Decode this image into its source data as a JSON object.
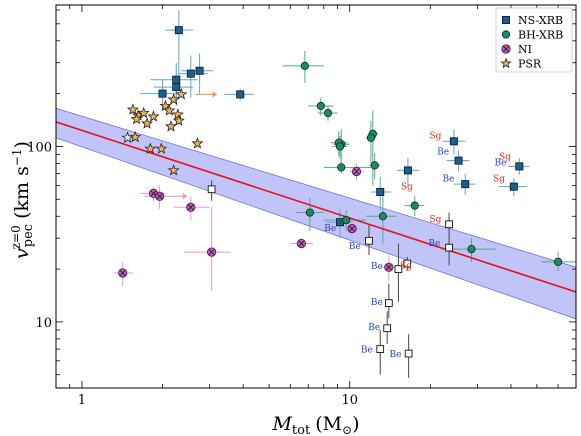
{
  "chart_data": {
    "type": "scatter",
    "title": "",
    "xlabel_main": "M",
    "xlabel_sub": "tot",
    "xlabel_unit": "(M",
    "xlabel_unit_close": ")",
    "ylabel_main": "v",
    "ylabel_sub": "pec",
    "ylabel_sup": "z=0",
    "ylabel_unit": "(km s",
    "ylabel_unit_sup": "−1",
    "ylabel_unit_close": ")",
    "x_scale": "log",
    "y_scale": "log",
    "xlim": [
      0.8,
      70
    ],
    "ylim": [
      4.2,
      640
    ],
    "x_ticks": [
      {
        "v": 1,
        "label": "1"
      },
      {
        "v": 10,
        "label": "10"
      }
    ],
    "y_ticks": [
      {
        "v": 10,
        "label": "10"
      },
      {
        "v": 100,
        "label": "100"
      }
    ],
    "legend_position": "top-right",
    "legend": [
      {
        "key": "ns",
        "label": "NS-XRB"
      },
      {
        "key": "bh",
        "label": "BH-XRB"
      },
      {
        "key": "ni",
        "label": "NI"
      },
      {
        "key": "psr",
        "label": "PSR"
      }
    ],
    "colors": {
      "ns": "#1f5d8a",
      "ns_err": "#5aa7d0",
      "bh": "#1e8a63",
      "bh_err": "#4fae80",
      "ni": "#c55bc2",
      "ni_err": "#de9adb",
      "psr": "#f5b25a",
      "psr_err": "#e8a257",
      "fit_line": "#e8101a",
      "band": "#8d93f2",
      "be_label": "#1f44d8",
      "sg_label": "#e0261b",
      "open_err": "#444444"
    },
    "fit": {
      "x": [
        0.8,
        70
      ],
      "y": [
        138,
        14.8
      ]
    },
    "band": {
      "upper": [
        165,
        20.5
      ],
      "lower": [
        112,
        10.4
      ]
    },
    "series": [
      {
        "name": "NS-XRB",
        "key": "ns",
        "points": [
          {
            "x": 2.3,
            "y": 460,
            "xl": 2.05,
            "xh": 2.6,
            "yl": 220,
            "yh": 600
          },
          {
            "x": 2.75,
            "y": 270,
            "xl": 2.35,
            "xh": 3.1,
            "yl": 200,
            "yh": 340
          },
          {
            "x": 2.55,
            "y": 260,
            "xl": 2.3,
            "xh": 2.95,
            "yl": 190,
            "yh": 330
          },
          {
            "x": 2.25,
            "y": 240,
            "xl": 1.8,
            "xh": 2.7,
            "yl": 180,
            "yh": 300
          },
          {
            "x": 2.25,
            "y": 218,
            "xl": 1.85,
            "xh": 2.6,
            "yl": 170,
            "yh": 270
          },
          {
            "x": 2.0,
            "y": 200,
            "xl": 1.65,
            "xh": 2.45,
            "yl": 160,
            "yh": 240
          },
          {
            "x": 3.9,
            "y": 198,
            "xl": 3.4,
            "xh": 4.4,
            "yl": 183,
            "yh": 213
          },
          {
            "x": 9.2,
            "y": 37,
            "xl": 8.2,
            "xh": 10.2,
            "yl": 30,
            "yh": 44
          },
          {
            "x": 13.0,
            "y": 55,
            "xl": 12.0,
            "xh": 14.3,
            "yl": 43,
            "yh": 67
          },
          {
            "x": 16.5,
            "y": 73,
            "xl": 15.0,
            "xh": 18.2,
            "yl": 60,
            "yh": 86
          },
          {
            "x": 24.5,
            "y": 107,
            "xl": 22.2,
            "xh": 27.0,
            "yl": 90,
            "yh": 125
          },
          {
            "x": 25.5,
            "y": 83,
            "xl": 23.0,
            "xh": 28.0,
            "yl": 72,
            "yh": 95
          },
          {
            "x": 27.0,
            "y": 61,
            "xl": 24.5,
            "xh": 29.5,
            "yl": 53,
            "yh": 70
          },
          {
            "x": 43.0,
            "y": 77,
            "xl": 39.0,
            "xh": 47.0,
            "yl": 69,
            "yh": 86
          },
          {
            "x": 41.0,
            "y": 59,
            "xl": 36.0,
            "xh": 46.0,
            "yl": 52,
            "yh": 66
          }
        ]
      },
      {
        "name": "BH-XRB",
        "key": "bh",
        "points": [
          {
            "x": 6.8,
            "y": 288,
            "xl": 5.6,
            "xh": 8.0,
            "yl": 230,
            "yh": 350
          },
          {
            "x": 7.8,
            "y": 170,
            "xl": 7.0,
            "xh": 8.7,
            "yl": 150,
            "yh": 190
          },
          {
            "x": 8.3,
            "y": 155,
            "xl": 7.6,
            "xh": 9.0,
            "yl": 140,
            "yh": 170
          },
          {
            "x": 9.3,
            "y": 103,
            "xl": 8.7,
            "xh": 10.0,
            "yl": 80,
            "yh": 125
          },
          {
            "x": 9.1,
            "y": 105,
            "xl": 8.5,
            "xh": 9.8,
            "yl": 88,
            "yh": 122
          },
          {
            "x": 9.2,
            "y": 100,
            "xl": 8.6,
            "xh": 9.8,
            "yl": 85,
            "yh": 115
          },
          {
            "x": 12.2,
            "y": 118,
            "xl": 11.7,
            "xh": 12.8,
            "yl": 60,
            "yh": 160
          },
          {
            "x": 12.0,
            "y": 112,
            "xl": 11.5,
            "xh": 12.6,
            "yl": 80,
            "yh": 140
          },
          {
            "x": 9.3,
            "y": 76,
            "xl": 8.0,
            "xh": 12.0,
            "yl": 70,
            "yh": 82
          },
          {
            "x": 12.4,
            "y": 78,
            "xl": 11.8,
            "xh": 13.0,
            "yl": 65,
            "yh": 92
          },
          {
            "x": 7.1,
            "y": 42,
            "xl": 6.3,
            "xh": 8.0,
            "yl": 33,
            "yh": 51
          },
          {
            "x": 9.7,
            "y": 38,
            "xl": 8.0,
            "xh": 11.5,
            "yl": 33,
            "yh": 43
          },
          {
            "x": 13.3,
            "y": 40,
            "xl": 11.5,
            "xh": 15.0,
            "yl": 28,
            "yh": 52
          },
          {
            "x": 17.5,
            "y": 46,
            "xl": 16.0,
            "xh": 19.0,
            "yl": 40,
            "yh": 52
          },
          {
            "x": 28.5,
            "y": 26,
            "xl": 22.0,
            "xh": 35.0,
            "yl": 22,
            "yh": 30
          },
          {
            "x": 60.0,
            "y": 22,
            "xl": 52.0,
            "xh": 70.0,
            "yl": 19.5,
            "yh": 25
          }
        ]
      },
      {
        "name": "NI",
        "key": "ni",
        "points": [
          {
            "x": 1.85,
            "y": 54,
            "xl": 1.65,
            "xh": 2.05,
            "yl": 49,
            "yh": 59
          },
          {
            "x": 1.95,
            "y": 52,
            "xl": 1.7,
            "xh": 2.2,
            "yl": 44,
            "yh": 60
          },
          {
            "x": 2.55,
            "y": 45,
            "xl": 2.2,
            "xh": 3.0,
            "yl": 38,
            "yh": 52
          },
          {
            "x": 3.05,
            "y": 25,
            "xl": 2.4,
            "xh": 3.6,
            "yl": 15,
            "yh": 45
          },
          {
            "x": 1.42,
            "y": 19,
            "xl": 1.32,
            "xh": 1.55,
            "yl": 16,
            "yh": 22
          },
          {
            "x": 6.6,
            "y": 28,
            "xl": 6.0,
            "xh": 7.3,
            "yl": 26,
            "yh": 30
          },
          {
            "x": 10.6,
            "y": 72,
            "xl": 10.0,
            "xh": 11.3,
            "yl": 64,
            "yh": 80
          },
          {
            "x": 10.2,
            "y": 34,
            "xl": 9.5,
            "xh": 11.0,
            "yl": 30,
            "yh": 38
          },
          {
            "x": 14.0,
            "y": 20.5,
            "xl": 13.0,
            "xh": 15.0,
            "yl": 17,
            "yh": 24
          }
        ]
      },
      {
        "name": "PSR",
        "key": "psr",
        "points": [
          {
            "x": 1.55,
            "y": 162
          },
          {
            "x": 1.62,
            "y": 150
          },
          {
            "x": 1.7,
            "y": 155
          },
          {
            "x": 1.6,
            "y": 143
          },
          {
            "x": 1.75,
            "y": 135
          },
          {
            "x": 1.85,
            "y": 148
          },
          {
            "x": 2.05,
            "y": 170
          },
          {
            "x": 2.12,
            "y": 160
          },
          {
            "x": 2.2,
            "y": 185
          },
          {
            "x": 2.28,
            "y": 152
          },
          {
            "x": 2.3,
            "y": 140
          },
          {
            "x": 2.35,
            "y": 198
          },
          {
            "x": 2.15,
            "y": 130
          },
          {
            "x": 1.58,
            "y": 113
          },
          {
            "x": 1.8,
            "y": 97
          },
          {
            "x": 1.98,
            "y": 97
          },
          {
            "x": 2.2,
            "y": 73
          },
          {
            "x": 2.7,
            "y": 104
          },
          {
            "x": 1.48,
            "y": 112
          }
        ],
        "upper_limits": [
          {
            "x": 2.2,
            "y": 185
          },
          {
            "x": 2.5,
            "y": 198
          }
        ],
        "limit_arrows": [
          {
            "x0": 2.65,
            "y0": 198,
            "x1": 3.1,
            "y1": 198
          },
          {
            "x0": 2.12,
            "y0": 52,
            "x1": 2.4,
            "y1": 52
          }
        ]
      },
      {
        "name": "Be/Sg open",
        "key": "open",
        "points": [
          {
            "x": 3.05,
            "y": 57,
            "yl": 49,
            "yh": 64
          },
          {
            "x": 11.8,
            "y": 29,
            "yl": 24,
            "yh": 36
          },
          {
            "x": 15.2,
            "y": 20,
            "yl": 13,
            "yh": 28
          },
          {
            "x": 16.4,
            "y": 21.5,
            "yl": 19.5,
            "yh": 23.5
          },
          {
            "x": 14.0,
            "y": 12.8,
            "yl": 10.5,
            "yh": 16.5
          },
          {
            "x": 13.8,
            "y": 9.2,
            "yl": 7.5,
            "yh": 11.5
          },
          {
            "x": 13.0,
            "y": 7.0,
            "yl": 5.0,
            "yh": 9.0
          },
          {
            "x": 16.6,
            "y": 6.6,
            "yl": 4.8,
            "yh": 8.5
          },
          {
            "x": 23.5,
            "y": 36,
            "yl": 30,
            "yh": 42
          },
          {
            "x": 23.5,
            "y": 26.5,
            "yl": 21,
            "yh": 31
          }
        ]
      }
    ],
    "annotations": [
      {
        "text": "Be",
        "kind": "be",
        "x": 8.9,
        "y": 33
      },
      {
        "text": "Be",
        "kind": "be",
        "x": 11.0,
        "y": 26
      },
      {
        "text": "Be",
        "kind": "be",
        "x": 13.3,
        "y": 20
      },
      {
        "text": "Be",
        "kind": "be",
        "x": 13.3,
        "y": 12.5
      },
      {
        "text": "Be",
        "kind": "be",
        "x": 13.0,
        "y": 9.0
      },
      {
        "text": "Be",
        "kind": "be",
        "x": 12.2,
        "y": 6.7
      },
      {
        "text": "Be",
        "kind": "be",
        "x": 15.6,
        "y": 6.3
      },
      {
        "text": "Be",
        "kind": "be",
        "x": 21.8,
        "y": 27
      },
      {
        "text": "Be",
        "kind": "be",
        "x": 23.5,
        "y": 90
      },
      {
        "text": "Be",
        "kind": "be",
        "x": 24.6,
        "y": 63
      },
      {
        "text": "Be",
        "kind": "be",
        "x": 38.5,
        "y": 78
      },
      {
        "text": "Sg",
        "kind": "sg",
        "x": 17.2,
        "y": 57
      },
      {
        "text": "Sg",
        "kind": "sg",
        "x": 17.1,
        "y": 20.2
      },
      {
        "text": "Sg",
        "kind": "sg",
        "x": 22.0,
        "y": 111
      },
      {
        "text": "Sg",
        "kind": "sg",
        "x": 22.0,
        "y": 37
      },
      {
        "text": "Sg",
        "kind": "sg",
        "x": 40.0,
        "y": 84
      },
      {
        "text": "Sg",
        "kind": "sg",
        "x": 38.0,
        "y": 63
      }
    ]
  }
}
